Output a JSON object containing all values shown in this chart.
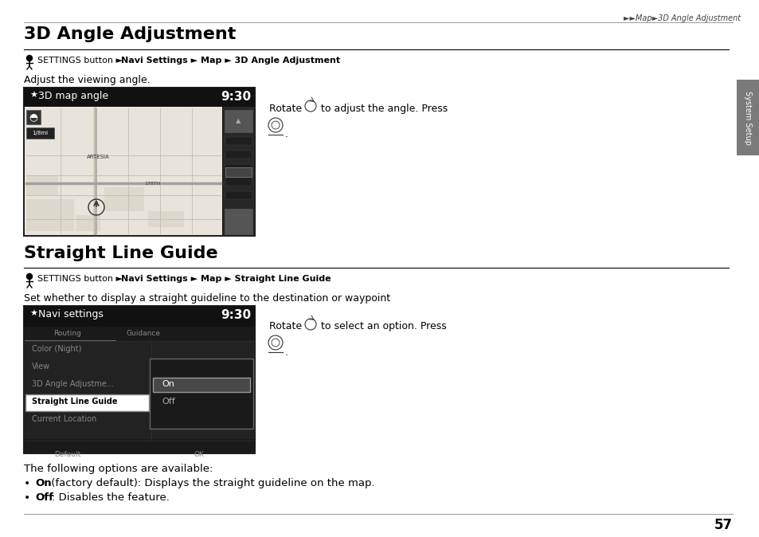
{
  "bg_color": "#ffffff",
  "page_width": 9.54,
  "page_height": 6.74,
  "dpi": 100,
  "top_bar_text": "►►Map►3D Angle Adjustment",
  "title1": "3D Angle Adjustment",
  "title2": "Straight Line Guide",
  "section1_breadcrumb_plain": "SETTINGS button ",
  "section1_breadcrumb_bold": "Navi Settings ► Map ► 3D Angle Adjustment",
  "section1_desc": "Adjust the viewing angle.",
  "section2_breadcrumb_plain": "SETTINGS button ",
  "section2_breadcrumb_bold": "Navi Settings ► Map ► Straight Line Guide",
  "section2_desc": "Set whether to display a straight guideline to the destination or waypoint",
  "following_text": "The following options are available:",
  "bullet1_bold": "On",
  "bullet1_text": " (factory default): Displays the straight guideline on the map.",
  "bullet2_bold": "Off",
  "bullet2_text": ": Disables the feature.",
  "page_number": "57",
  "sidebar_text": "System Setup",
  "sidebar_color": "#7a7a7a",
  "screen1_header": "3D map angle",
  "screen1_time": "9:30",
  "screen2_header": "Navi settings",
  "screen2_time": "9:30",
  "rotate_text1": "Rotate",
  "rotate_suffix1": " to adjust the angle. Press",
  "rotate_text2": "Rotate",
  "rotate_suffix2": " to select an option. Press"
}
